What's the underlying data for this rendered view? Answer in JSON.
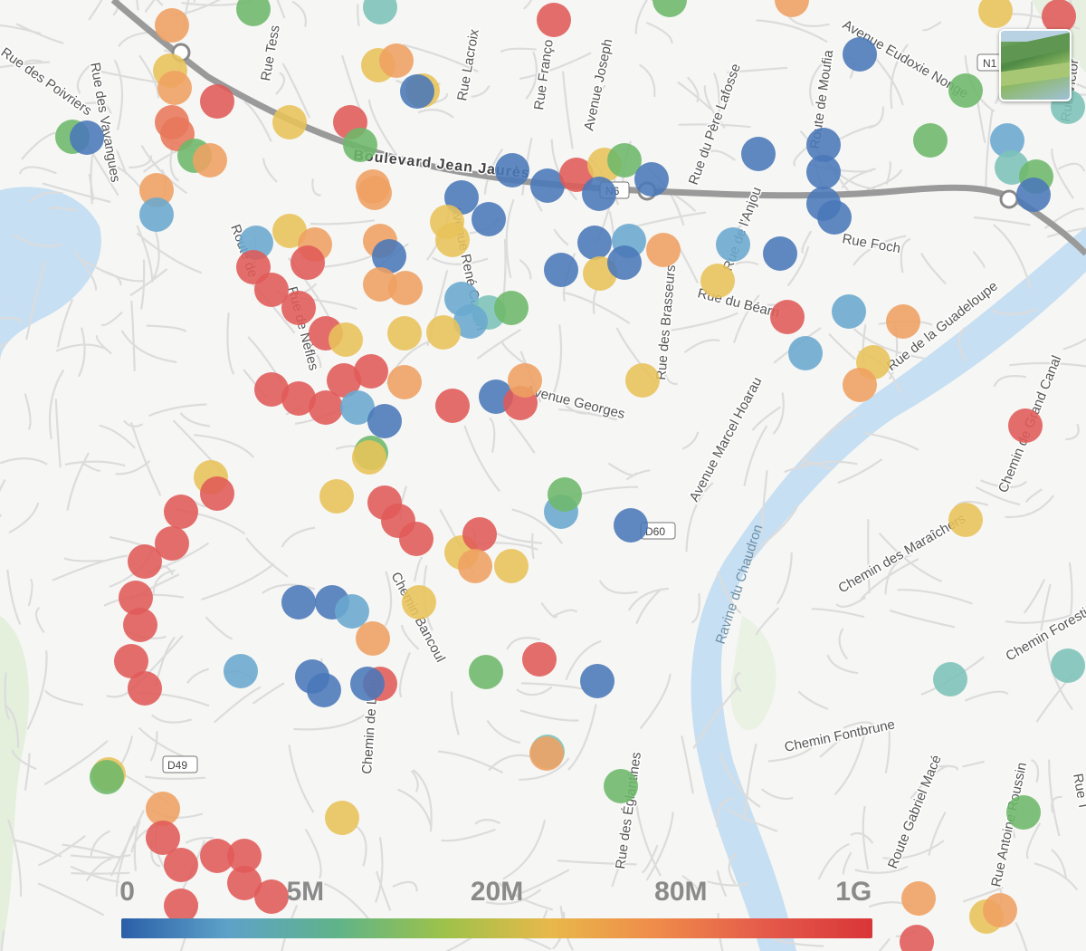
{
  "map": {
    "road_labels": {
      "boulevard": "Boulevard Jean Jaurès",
      "n6": "N6",
      "n1": "N1",
      "d60": "D60",
      "d49": "D49",
      "rue_des_vavangues": "Rue des Vavangues",
      "rue_tess": "Rue Tess",
      "rue_lacroix": "Rue Lacroix",
      "rue_francois": "Rue Franço",
      "avenue_joseph": "Avenue Joseph",
      "rue_de_moufia": "Route de Moufia",
      "avenue_eudoxie_nonge": "Avenue Eudoxie Nonge",
      "rue_du_pere_lafosse": "Rue du Père Lafosse",
      "rue_foch": "Rue Foch",
      "rue_de_lanjou": "Rue de l'Anjou",
      "rue_du_bearn": "Rue du Béarn",
      "avenue_rene_cassin": "Avenue René Cassin",
      "rue_des_brasseurs": "Rue des Brasseurs",
      "avenue_georges": "Avenue Georges",
      "avenue_marcel_hoarau": "Avenue Marcel Hoarau",
      "rue_de_la_guadeloupe": "Rue de la Guadeloupe",
      "chemin_de_grand_canal": "Chemin de Grand Canal",
      "chemin_des_maraichers": "Chemin des Maraîchers",
      "chemin_forestier": "Chemin Forestier",
      "chemin_fontbrune": "Chemin Fontbrune",
      "route_gabriel_mace": "Route Gabriel Macé",
      "rue_antoine_roussin": "Rue Antoine Roussin",
      "rue_des_eglantines": "Rue des Églantines",
      "chemin_bancoul": "Chemin Bancoul",
      "chemin_de_lang": "Chemin de Lang",
      "rue_des_poivriers": "Rue des Poivriers",
      "rue_de_nefles": "Rue de Nèfles",
      "route_de": "Route de",
      "rue_victor": "Rue Victor",
      "rue_t": "Rue T",
      "ravine_du_chaudron": "Ravine du Chaudron"
    },
    "legend": {
      "labels": [
        "0",
        "5M",
        "20M",
        "80M",
        "1G"
      ],
      "colors": [
        "#2b5fa8",
        "#5ea2c8",
        "#5fb38a",
        "#9cc24a",
        "#e8b84a",
        "#ef8a4a",
        "#e45a4a",
        "#d93538"
      ]
    },
    "layer_toggle": "satellite-layer-thumbnail"
  }
}
